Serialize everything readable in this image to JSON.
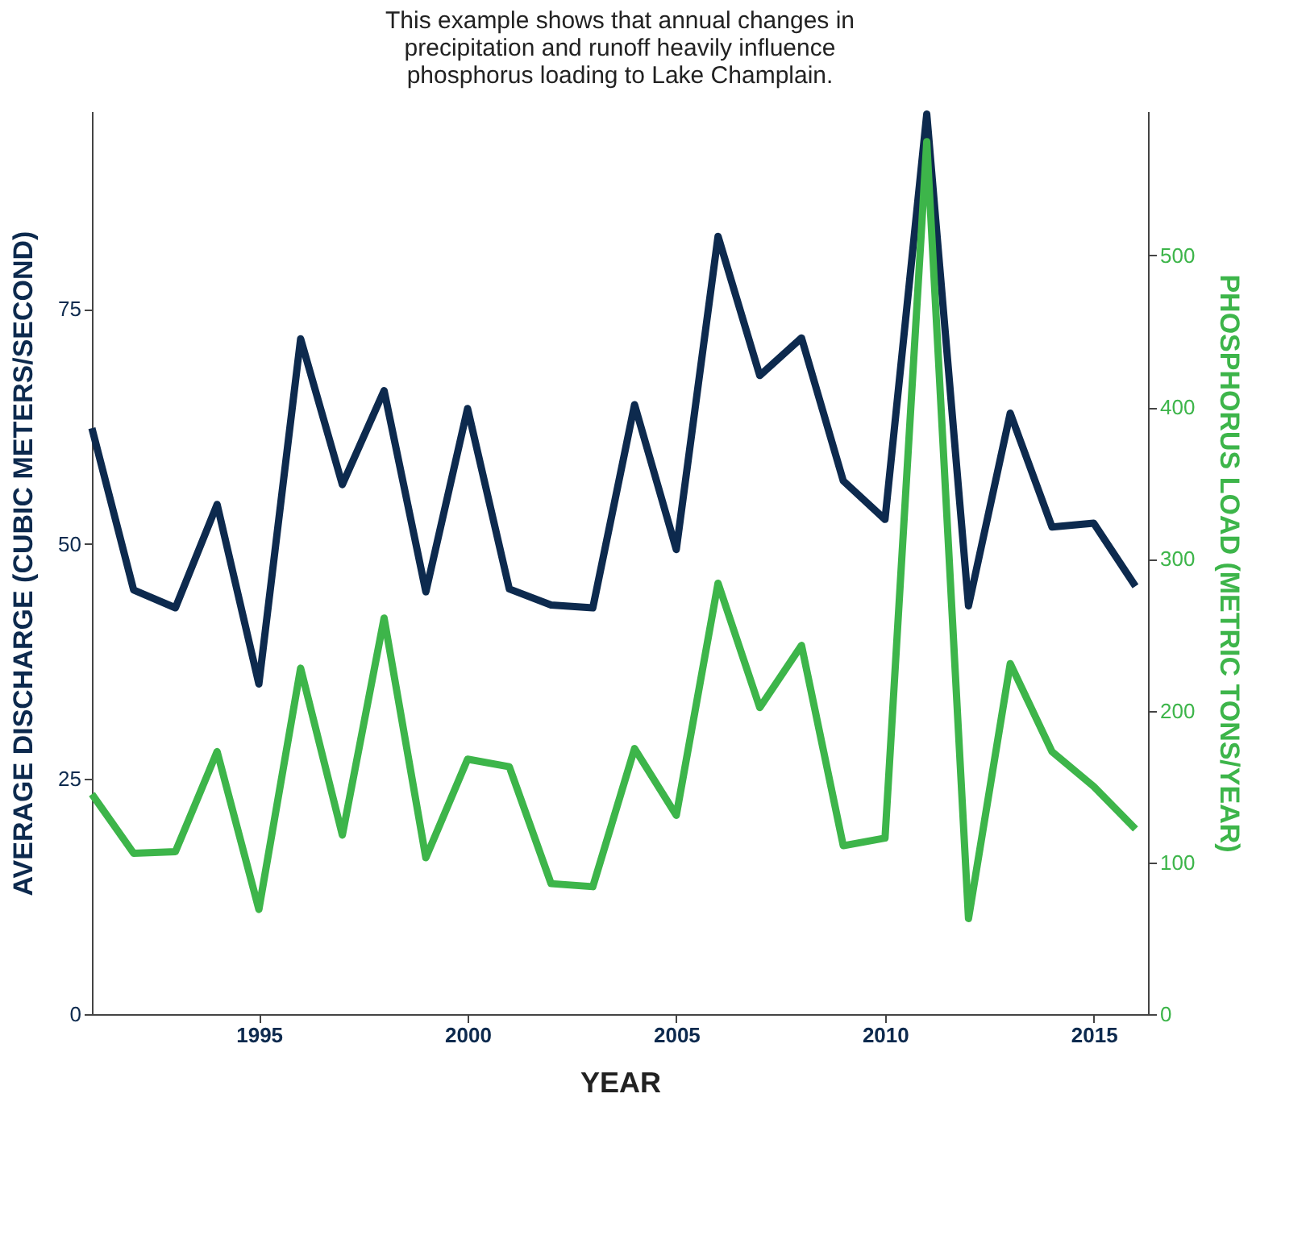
{
  "chart_data": {
    "type": "line",
    "title": "This example shows that annual changes in precipitation and runoff heavily influence phosphorus loading to Lake Champlain.",
    "xlabel": "YEAR",
    "ylabel": "AVERAGE DISCHARGE (CUBIC METERS/SECOND)",
    "y2label": "PHOSPHORUS LOAD (METRIC TONS/YEAR)",
    "x": [
      1991,
      1992,
      1993,
      1994,
      1995,
      1996,
      1997,
      1998,
      1999,
      2000,
      2001,
      2002,
      2003,
      2004,
      2005,
      2006,
      2007,
      2008,
      2009,
      2010,
      2011,
      2012,
      2013,
      2014,
      2015,
      2016
    ],
    "series": [
      {
        "color": "#0d2a4e",
        "values": [
          62.3,
          45.1,
          43.2,
          54.2,
          35.1,
          71.8,
          56.3,
          66.3,
          44.9,
          64.4,
          45.2,
          43.5,
          43.2,
          64.8,
          49.4,
          82.7,
          67.9,
          71.9,
          56.7,
          52.6,
          95.7,
          43.4,
          63.9,
          51.8,
          52.2,
          45.5
        ]
      },
      {
        "color": "#3db54a",
        "axis": "y2",
        "values": [
          145,
          106,
          107,
          173,
          69,
          228,
          118,
          261,
          103,
          168,
          163,
          86,
          84,
          175,
          131,
          284,
          202,
          243,
          111,
          116,
          575,
          63,
          231,
          173,
          150,
          122
        ]
      }
    ],
    "xlim": [
      1991,
      2016.3
    ],
    "xticks": [
      1995,
      2000,
      2005,
      2010,
      2015
    ],
    "ylim": [
      0,
      96
    ],
    "yticks": [
      0,
      25,
      50,
      75
    ],
    "y2lim": [
      0,
      595
    ],
    "y2ticks": [
      0,
      100,
      200,
      300,
      400,
      500
    ],
    "grid": false,
    "line_style": "solid",
    "marker": "none"
  }
}
